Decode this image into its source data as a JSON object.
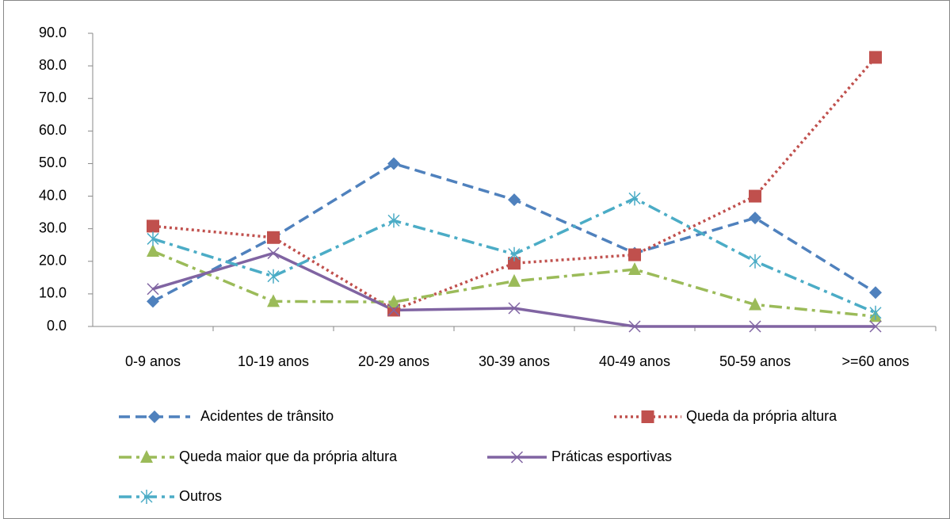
{
  "chart_data": {
    "type": "line",
    "categories": [
      "0-9 anos",
      "10-19 anos",
      "20-29 anos",
      "30-39 anos",
      "40-49 anos",
      "50-59 anos",
      ">=60 anos"
    ],
    "ylim": [
      0,
      90
    ],
    "yticks": [
      {
        "value": 0,
        "label": "0.0"
      },
      {
        "value": 10,
        "label": "10.0"
      },
      {
        "value": 20,
        "label": "20.0"
      },
      {
        "value": 30,
        "label": "30.0"
      },
      {
        "value": 40,
        "label": "40.0"
      },
      {
        "value": 50,
        "label": "50.0"
      },
      {
        "value": 60,
        "label": "60.0"
      },
      {
        "value": 70,
        "label": "70.0"
      },
      {
        "value": 80,
        "label": "80.0"
      },
      {
        "value": 90,
        "label": "90.0"
      }
    ],
    "grid": false,
    "series": [
      {
        "name": "Acidentes de trânsito",
        "color": "#4f81bd",
        "values": [
          7.7,
          27.3,
          50.0,
          38.9,
          22.5,
          33.3,
          10.4
        ]
      },
      {
        "name": "Queda da própria altura",
        "color": "#c0504d",
        "values": [
          30.8,
          27.3,
          5.0,
          19.4,
          22.0,
          40.0,
          82.6
        ]
      },
      {
        "name": "Queda maior que da própria altura",
        "color": "#9bbb59",
        "values": [
          23.1,
          7.7,
          7.5,
          13.9,
          17.5,
          6.7,
          3.1
        ]
      },
      {
        "name": "Práticas esportivas",
        "color": "#8064a2",
        "values": [
          11.5,
          22.5,
          5.0,
          5.6,
          0,
          0,
          0
        ]
      },
      {
        "name": "Outros",
        "color": "#4bacc6",
        "values": [
          26.9,
          15.4,
          32.5,
          22.2,
          39.3,
          20.0,
          4.2
        ]
      }
    ]
  }
}
